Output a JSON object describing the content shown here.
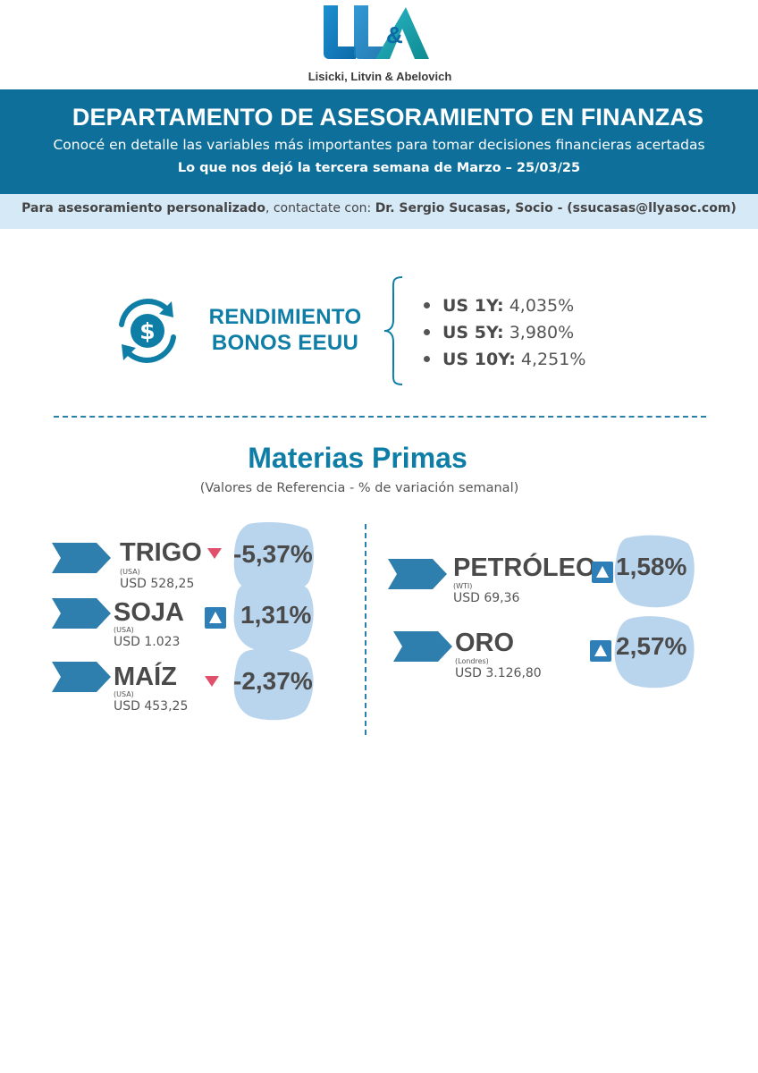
{
  "logo": {
    "company": "Lisicki, Litvin & Abelovich"
  },
  "header": {
    "title": "DEPARTAMENTO DE ASESORAMIENTO EN FINANZAS",
    "subtitle": "Conocé en detalle las variables más importantes para tomar decisiones financieras acertadas",
    "week": "Lo que nos dejó la tercera semana de Marzo – 25/03/25"
  },
  "contact": {
    "lead_bold": "Para asesoramiento personalizado",
    "lead_rest": ", contactate con: ",
    "person": "Dr. Sergio Sucasas, Socio - (ssucasas@llyasoc.com)"
  },
  "bonds": {
    "title_line1": "RENDIMIENTO",
    "title_line2": "BONOS EEUU",
    "icon": "dollar-cycle-icon",
    "items": [
      {
        "label": "US 1Y:",
        "value": "4,035%"
      },
      {
        "label": "US 5Y:",
        "value": "3,980%"
      },
      {
        "label": "US 10Y:",
        "value": "4,251%"
      }
    ]
  },
  "commodities": {
    "title": "Materias Primas",
    "subtitle": "(Valores de Referencia - % de variación semanal)",
    "colors": {
      "accent": "#0f7ea6",
      "down": "#e0506a",
      "up": "#2e7fb8",
      "blob": "#b9d5ee"
    },
    "items": [
      {
        "name": "TRIGO",
        "origin": "(USA)",
        "price": "USD 528,25",
        "change": "-5,37%",
        "direction": "down"
      },
      {
        "name": "SOJA",
        "origin": "(USA)",
        "price": "USD 1.023",
        "change": "1,31%",
        "direction": "up"
      },
      {
        "name": "MAÍZ",
        "origin": "(USA)",
        "price": "USD 453,25",
        "change": "-2,37%",
        "direction": "down"
      },
      {
        "name": "PETRÓLEO",
        "origin": "(WTI)",
        "price": "USD 69,36",
        "change": "1,58%",
        "direction": "up"
      },
      {
        "name": "ORO",
        "origin": "(Londres)",
        "price": "USD 3.126,80",
        "change": "2,57%",
        "direction": "up"
      }
    ]
  }
}
